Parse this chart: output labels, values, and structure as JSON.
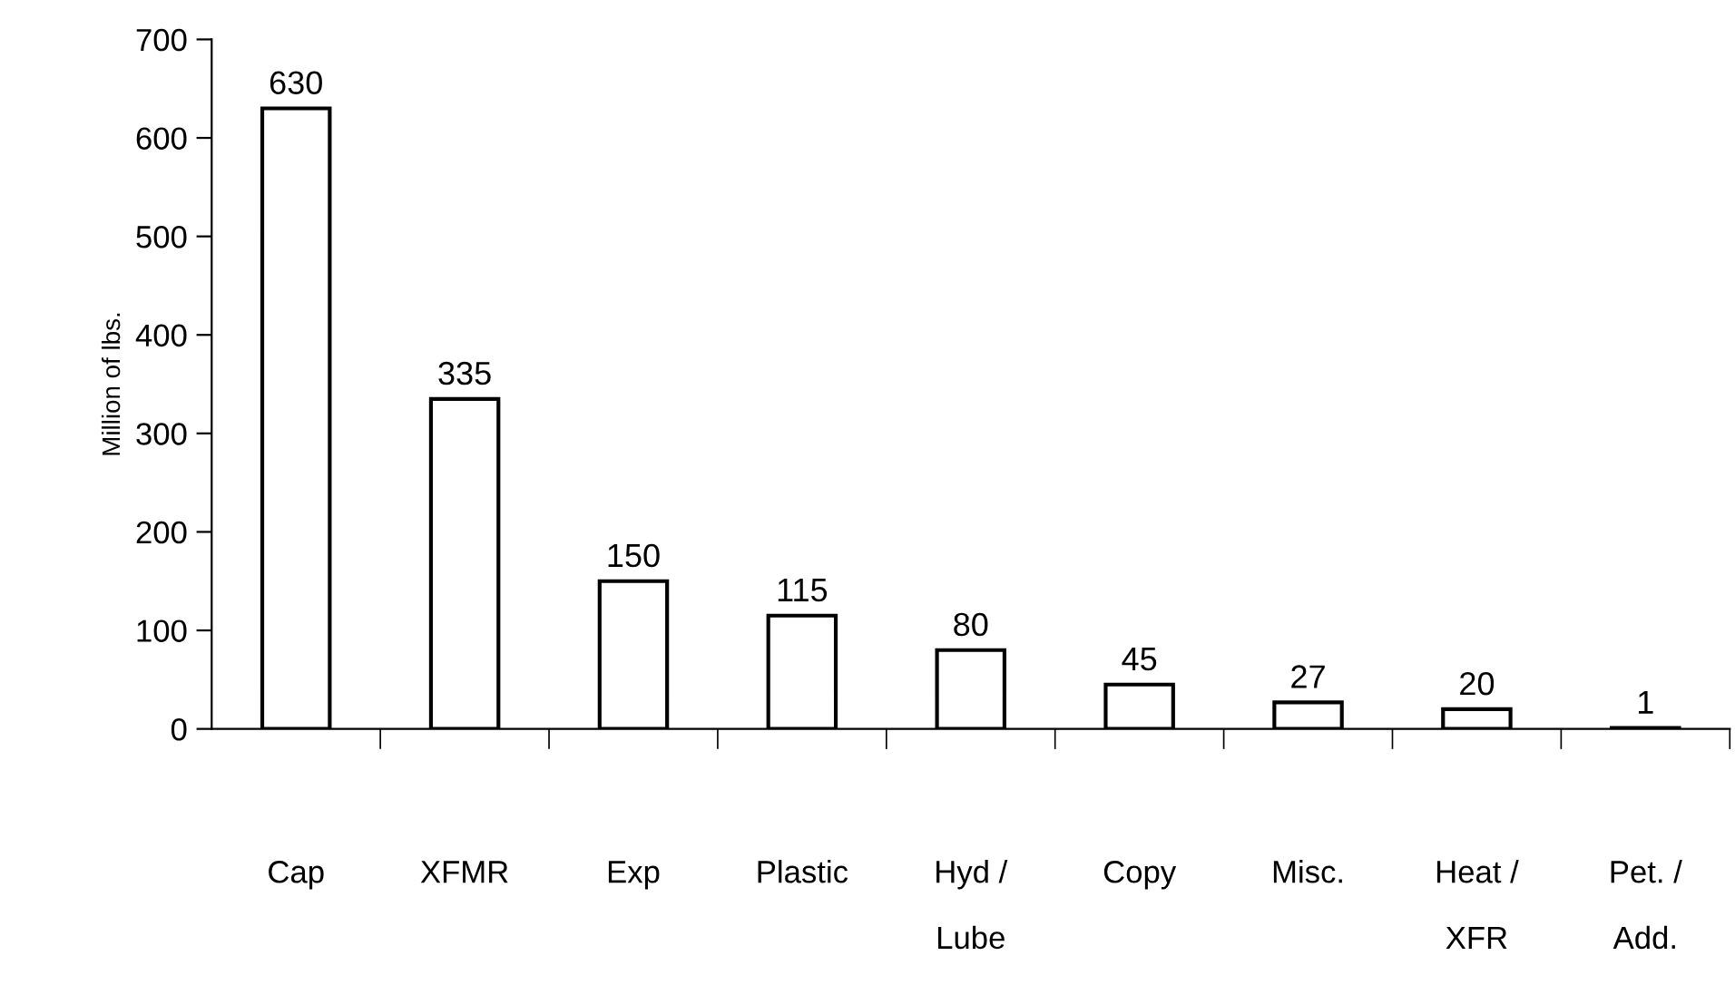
{
  "chart_data": {
    "type": "bar",
    "ylabel": "Million of lbs.",
    "categories": [
      "Cap",
      "XFMR",
      "Exp",
      "Plastic",
      "Hyd /\nLube",
      "Copy",
      "Misc.",
      "Heat /\nXFR",
      "Pet. /\nAdd."
    ],
    "values": [
      630,
      335,
      150,
      115,
      80,
      45,
      27,
      20,
      1
    ],
    "color": "#ffffff",
    "ylim": [
      0,
      700
    ],
    "yticks": [
      0,
      100,
      200,
      300,
      400,
      500,
      600,
      700
    ],
    "data_labels": true,
    "grid": false,
    "legend": false
  }
}
